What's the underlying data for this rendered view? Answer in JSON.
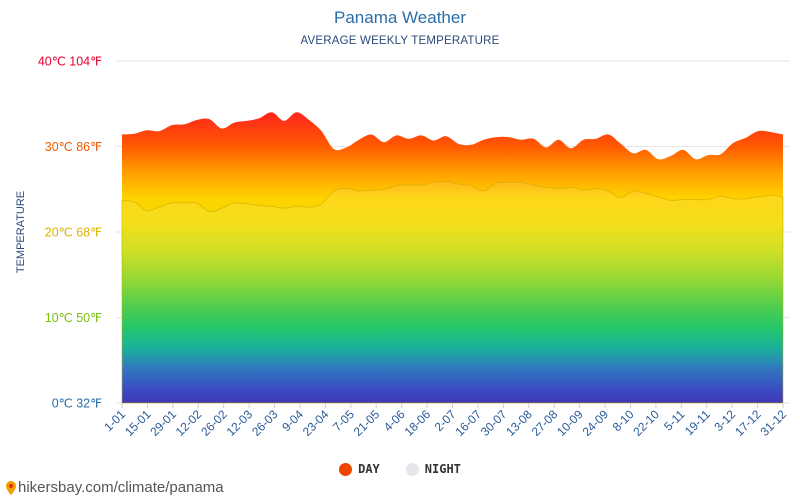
{
  "chart_data": {
    "type": "area",
    "title": "Panama Weather",
    "subtitle": "AVERAGE WEEKLY TEMPERATURE",
    "ylabel": "TEMPERATURE",
    "ylim": [
      0,
      40
    ],
    "y_ticks": [
      {
        "value": 0,
        "label": "0℃ 32℉",
        "color": "#2a6ea8"
      },
      {
        "value": 10,
        "label": "10℃ 50℉",
        "color": "#7ac10e"
      },
      {
        "value": 20,
        "label": "20℃ 68℉",
        "color": "#d8b400"
      },
      {
        "value": 30,
        "label": "30℃ 86℉",
        "color": "#ee5a00"
      },
      {
        "value": 40,
        "label": "40℃ 104℉",
        "color": "#e8002a"
      }
    ],
    "x_tick_labels": [
      "1-01",
      "15-01",
      "29-01",
      "12-02",
      "26-02",
      "12-03",
      "26-03",
      "9-04",
      "23-04",
      "7-05",
      "21-05",
      "4-06",
      "18-06",
      "2-07",
      "16-07",
      "30-07",
      "13-08",
      "27-08",
      "10-09",
      "24-09",
      "8-10",
      "22-10",
      "5-11",
      "19-11",
      "3-12",
      "17-12",
      "31-12"
    ],
    "series": [
      {
        "name": "DAY",
        "color": "#ee4400",
        "values": [
          31.4,
          31.5,
          31.9,
          31.8,
          32.5,
          32.6,
          33.1,
          33.2,
          32.1,
          32.8,
          33.0,
          33.3,
          34.0,
          33.0,
          34.0,
          33.1,
          31.8,
          29.7,
          29.9,
          30.8,
          31.4,
          30.5,
          31.3,
          30.9,
          31.3,
          30.7,
          31.2,
          30.3,
          30.2,
          30.8,
          31.1,
          31.1,
          30.8,
          30.9,
          29.9,
          30.8,
          29.8,
          30.8,
          30.9,
          31.4,
          30.3,
          29.2,
          29.6,
          28.5,
          28.9,
          29.6,
          28.5,
          29.0,
          29.1,
          30.4,
          31.0,
          31.8,
          31.7,
          31.4
        ]
      },
      {
        "name": "NIGHT",
        "color": "#e6e6ea",
        "values": [
          23.7,
          23.5,
          22.5,
          22.9,
          23.4,
          23.4,
          23.4,
          22.4,
          22.8,
          23.4,
          23.3,
          23.1,
          23.0,
          22.8,
          23.0,
          22.9,
          23.3,
          24.8,
          25.1,
          24.8,
          24.9,
          25.0,
          25.4,
          25.5,
          25.5,
          25.8,
          25.9,
          25.6,
          25.4,
          24.8,
          25.7,
          25.8,
          25.8,
          25.5,
          25.2,
          25.1,
          25.2,
          24.9,
          25.1,
          24.8,
          24.0,
          24.8,
          24.5,
          24.1,
          23.7,
          23.8,
          23.8,
          23.8,
          24.2,
          23.9,
          23.9,
          24.1,
          24.3,
          24.1
        ]
      }
    ],
    "legend_position": "bottom-center",
    "grid": true
  },
  "legend": {
    "day": "DAY",
    "night": "NIGHT",
    "day_color": "#ee4400",
    "night_color": "#e6e6ea"
  },
  "source": {
    "text": "hikersbay.com/climate/panama"
  }
}
